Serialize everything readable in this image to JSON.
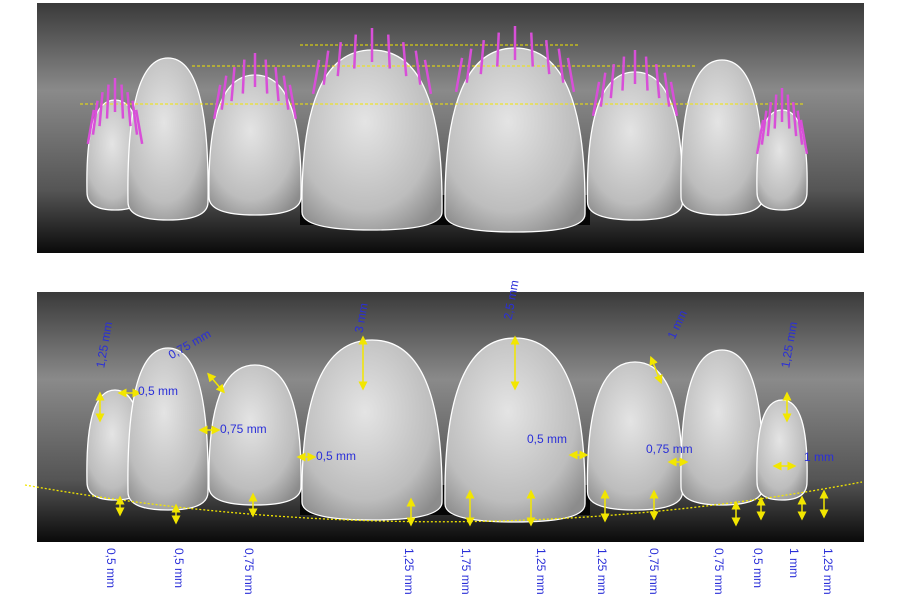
{
  "bottom_panel": {
    "annotations": [
      "1,25 mm",
      "0,5 mm",
      "0,75 mm",
      "0,75 mm",
      "0,5 mm",
      "3 mm",
      "2,5 mm",
      "0,5 mm",
      "1 mm",
      "0,75 mm",
      "1,25 mm",
      "1 mm"
    ],
    "bottom_labels": [
      "0,5 mm",
      "0,5 mm",
      "0,75 mm",
      "1,25 mm",
      "1,75 mm",
      "1,25 mm",
      "1,25 mm",
      "0,75 mm",
      "0,75 mm",
      "0,5 mm",
      "1 mm",
      "1,25 mm"
    ]
  }
}
